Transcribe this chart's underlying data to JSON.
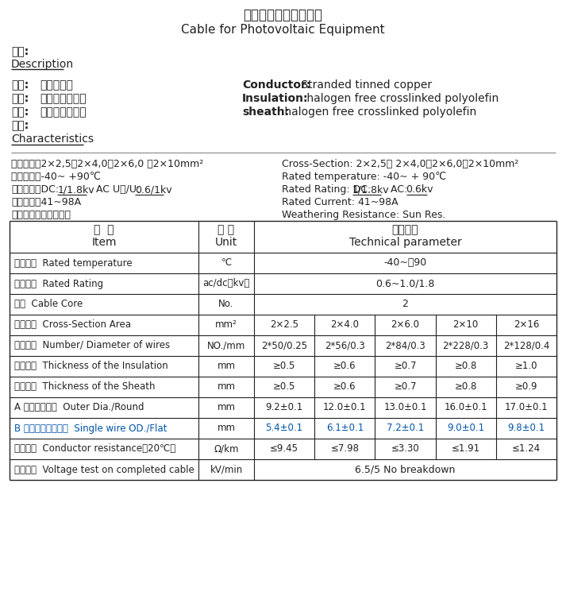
{
  "title_cn": "光伏设备用电缆规格书",
  "title_en": "Cable for Photovoltaic Equipment",
  "desc_label": "说明:",
  "desc_underline": "Description",
  "left_props": [
    [
      "导体:",
      "镀锡铜绞线"
    ],
    [
      "绝缘:",
      "低烟无卤聚烯烃"
    ],
    [
      "护套:",
      "低烟无卤聚烯烃"
    ],
    [
      "特性:",
      ""
    ]
  ],
  "characteristics_label": "Characteristics",
  "right_props": [
    [
      "Conductor:",
      " Stranded tinned copper"
    ],
    [
      "Insulation:",
      " halogen free crosslinked polyolefin"
    ],
    [
      "sheath:",
      " halogen free crosslinked polyolefin"
    ]
  ],
  "char_left": [
    "标称截面：2×2,5、2×4,0、2×6,0 、2×10mm²",
    "额定温度：-40~ +90℃",
    [
      "额定电压：DC:",
      "1/1.8kv",
      "   AC U。/U:",
      "0.6/1kv"
    ],
    "额定电流：41~98A",
    "耐气候性：耐阳光照射"
  ],
  "char_right": [
    "Cross-Section: 2×2,5、 2×4,0、2×6,0、2×10mm²",
    "Rated temperature: -40~ + 90℃",
    [
      "Rated Rating: DC:",
      "1/1.8kv",
      "   AC:",
      "0.6kv"
    ],
    "Rated Current: 41~98A",
    "Weathering Resistance: Sun Res."
  ],
  "table_rows": [
    {
      "item": "工作温度  Rated temperature",
      "unit": "℃",
      "values": [
        "-40~＋90"
      ],
      "span": true,
      "blue": false
    },
    {
      "item": "工作电压  Rated Rating",
      "unit": "ac/dc（kv）",
      "values": [
        "0.6~1.0/1.8"
      ],
      "span": true,
      "blue": false
    },
    {
      "item": "芯数  Cable Core",
      "unit": "No.",
      "values": [
        "2"
      ],
      "span": true,
      "blue": false
    },
    {
      "item": "标称截面  Cross-Section Area",
      "unit": "mm²",
      "values": [
        "2×2.5",
        "2×4.0",
        "2×6.0",
        "2×10",
        "2×16"
      ],
      "span": false,
      "blue": false
    },
    {
      "item": "铜丝结构  Number/ Diameter of wires",
      "unit": "NO./mm",
      "values": [
        "2*50/0.25",
        "2*56/0.3",
        "2*84/0.3",
        "2*228/0.3",
        "2*128/0.4"
      ],
      "span": false,
      "blue": false
    },
    {
      "item": "绝缘壁厚  Thickness of the Insulation",
      "unit": "mm",
      "values": [
        "≥0.5",
        "≥0.6",
        "≥0.7",
        "≥0.8",
        "≥1.0"
      ],
      "span": false,
      "blue": false
    },
    {
      "item": "护套壁厚  Thickness of the Sheath",
      "unit": "mm",
      "values": [
        "≥0.5",
        "≥0.6",
        "≥0.7",
        "≥0.8",
        "≥0.9"
      ],
      "span": false,
      "blue": false
    },
    {
      "item": "A 圆形电线外径  Outer Dia./Round",
      "unit": "mm",
      "values": [
        "9.2±0.1",
        "12.0±0.1",
        "13.0±0.1",
        "16.0±0.1",
        "17.0±0.1"
      ],
      "span": false,
      "blue": false
    },
    {
      "item": "B 扁形电缆单支外径  Single wire OD./Flat",
      "unit": "mm",
      "values": [
        "5.4±0.1",
        "6.1±0.1",
        "7.2±0.1",
        "9.0±0.1",
        "9.8±0.1"
      ],
      "span": false,
      "blue": true
    },
    {
      "item": "导体电阻  Conductor resistance（20℃）",
      "unit": "Ω/km",
      "values": [
        "≤9.45",
        "≤7.98",
        "≤3.30",
        "≤1.91",
        "≤1.24"
      ],
      "span": false,
      "blue": false
    },
    {
      "item": "试验电压  Voltage test on completed cable",
      "unit": "kV/min",
      "values": [
        "6.5/5 No breakdown"
      ],
      "span": true,
      "blue": false
    }
  ],
  "blue": "#0055AA",
  "black": "#222222",
  "gray": "#555555"
}
